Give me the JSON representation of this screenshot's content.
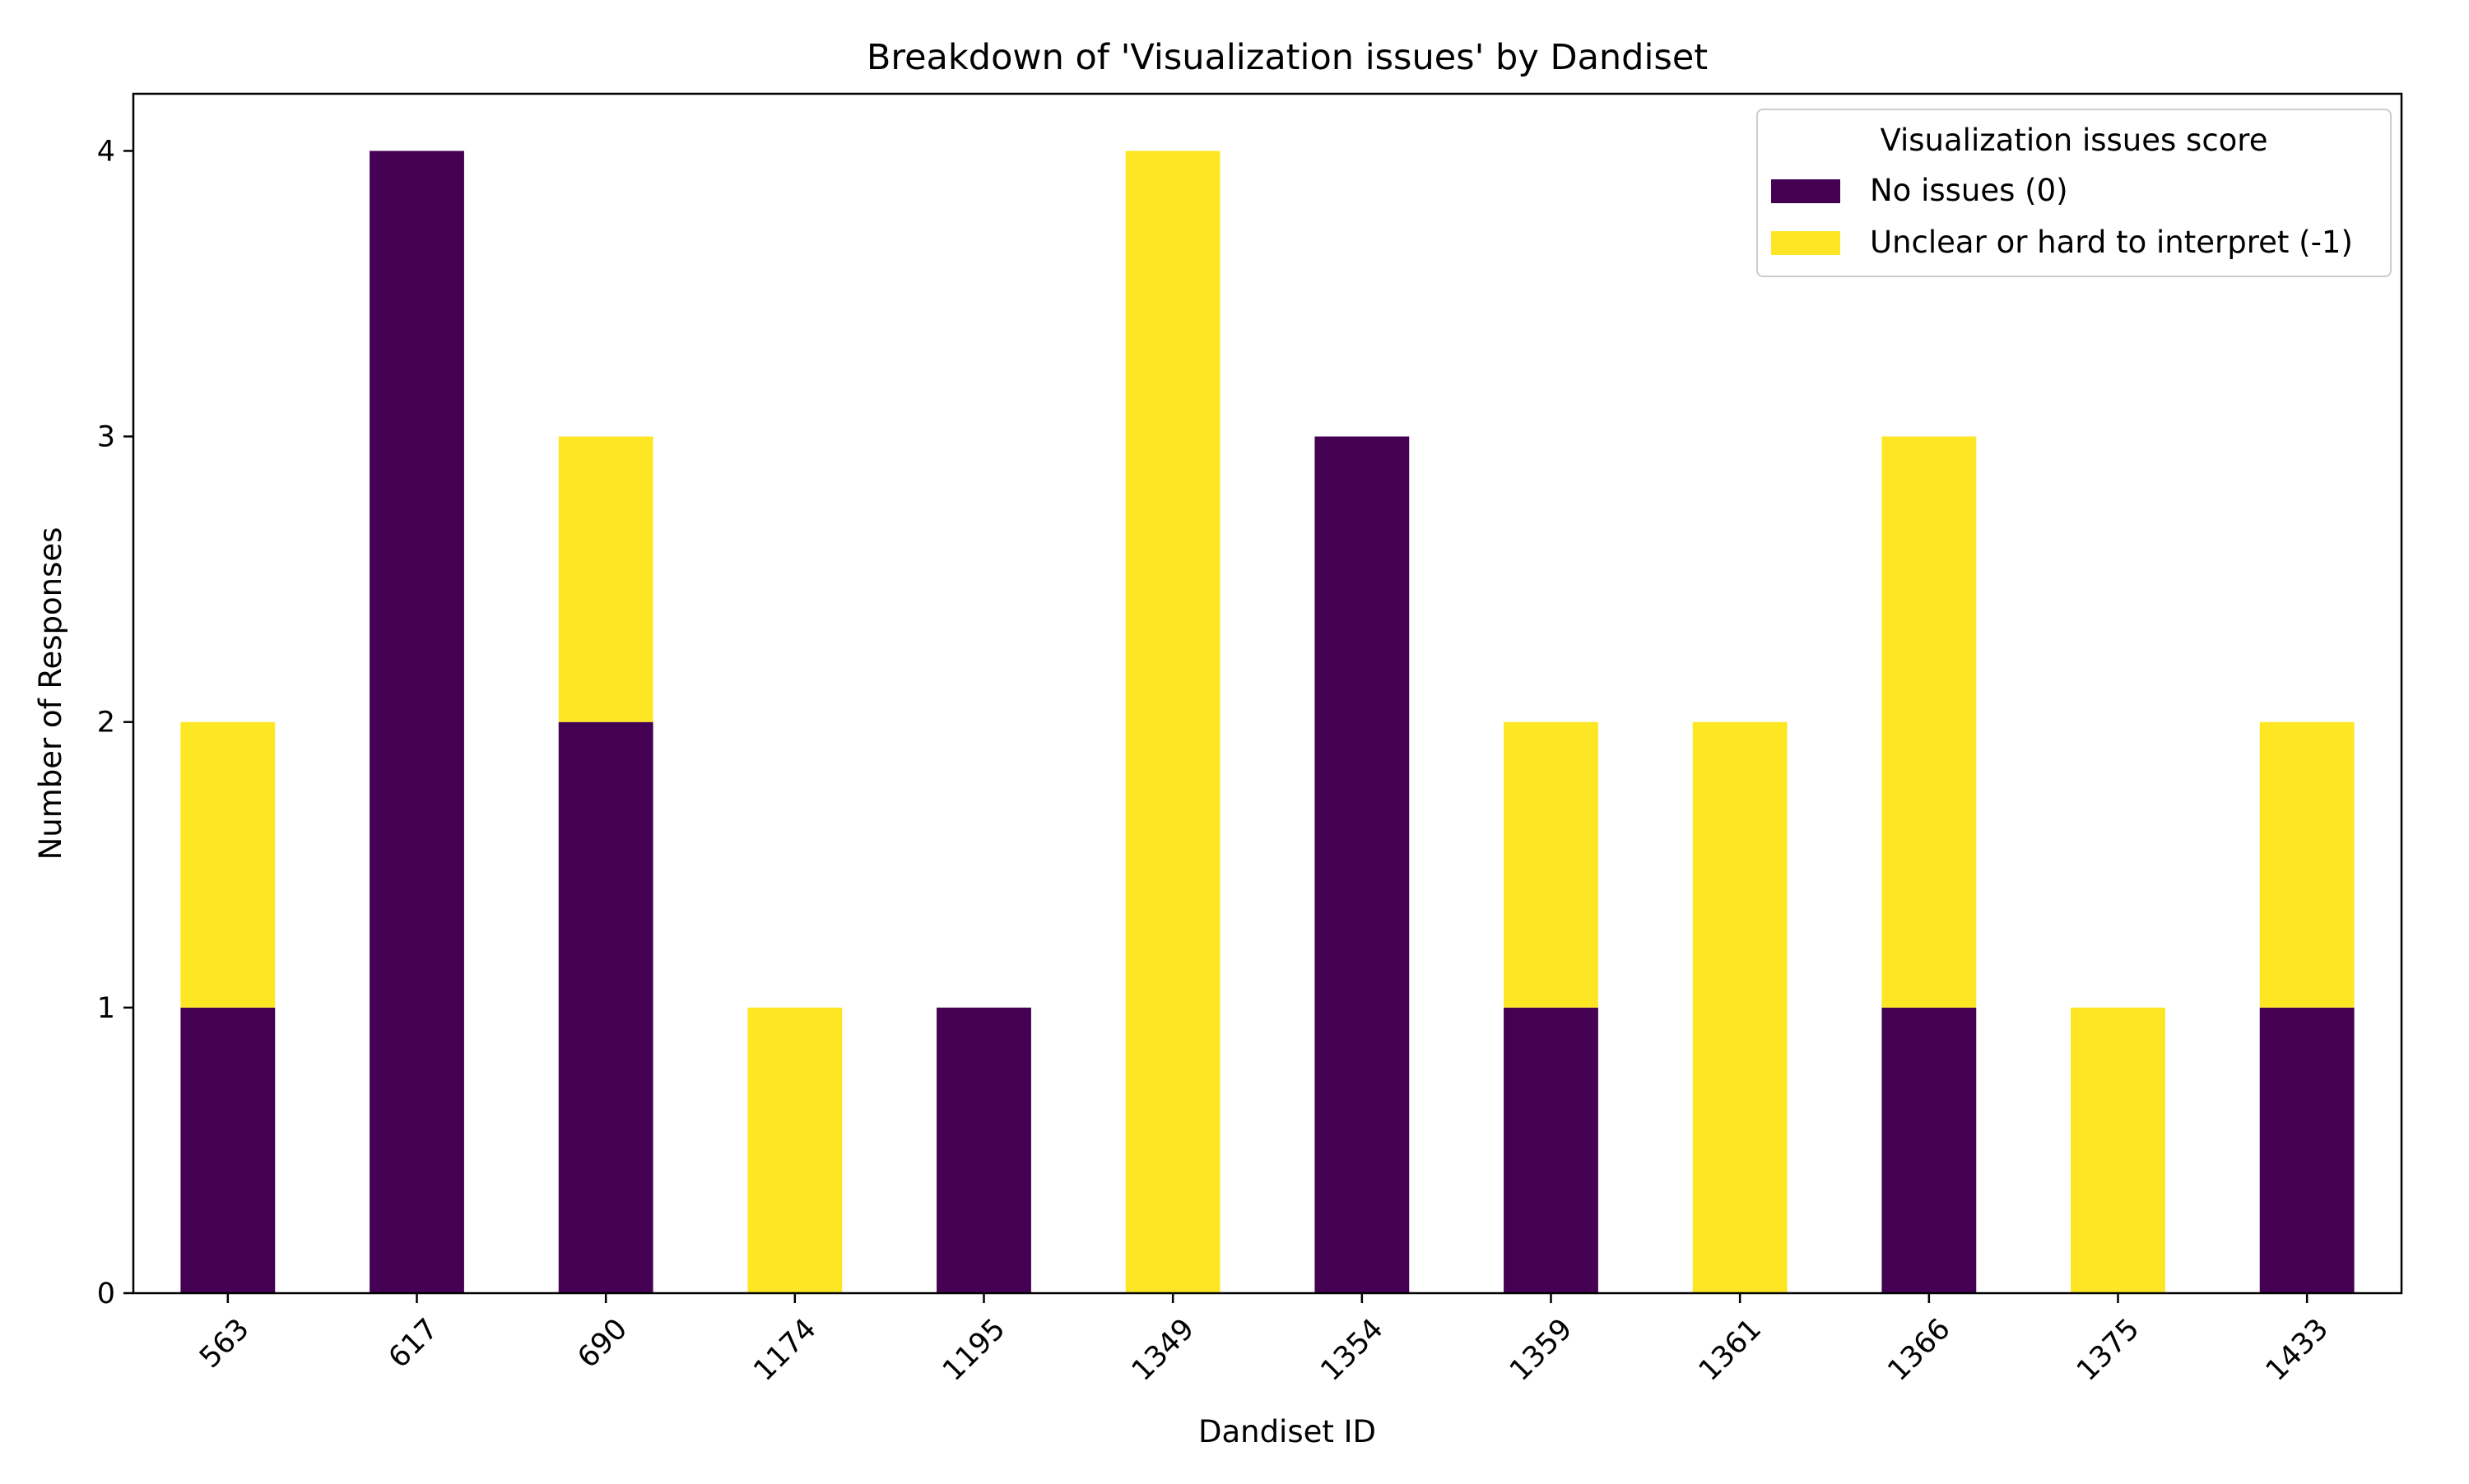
{
  "chart_data": {
    "type": "bar",
    "stacked": true,
    "title": "Breakdown of 'Visualization issues' by Dandiset",
    "xlabel": "Dandiset ID",
    "ylabel": "Number of Responses",
    "categories": [
      "563",
      "617",
      "690",
      "1174",
      "1195",
      "1349",
      "1354",
      "1359",
      "1361",
      "1366",
      "1375",
      "1433"
    ],
    "series": [
      {
        "name": "No issues (0)",
        "color": "#440154",
        "values": [
          1,
          4,
          2,
          0,
          1,
          0,
          3,
          1,
          0,
          1,
          0,
          1
        ]
      },
      {
        "name": "Unclear or hard to interpret (-1)",
        "color": "#fde725",
        "values": [
          1,
          0,
          1,
          1,
          0,
          4,
          0,
          1,
          2,
          2,
          1,
          1
        ]
      }
    ],
    "ylim": [
      0,
      4.2
    ],
    "yticks": [
      0,
      1,
      2,
      3,
      4
    ],
    "grid": false,
    "legend": {
      "title": "Visualization issues score",
      "placement": "top-right"
    }
  }
}
